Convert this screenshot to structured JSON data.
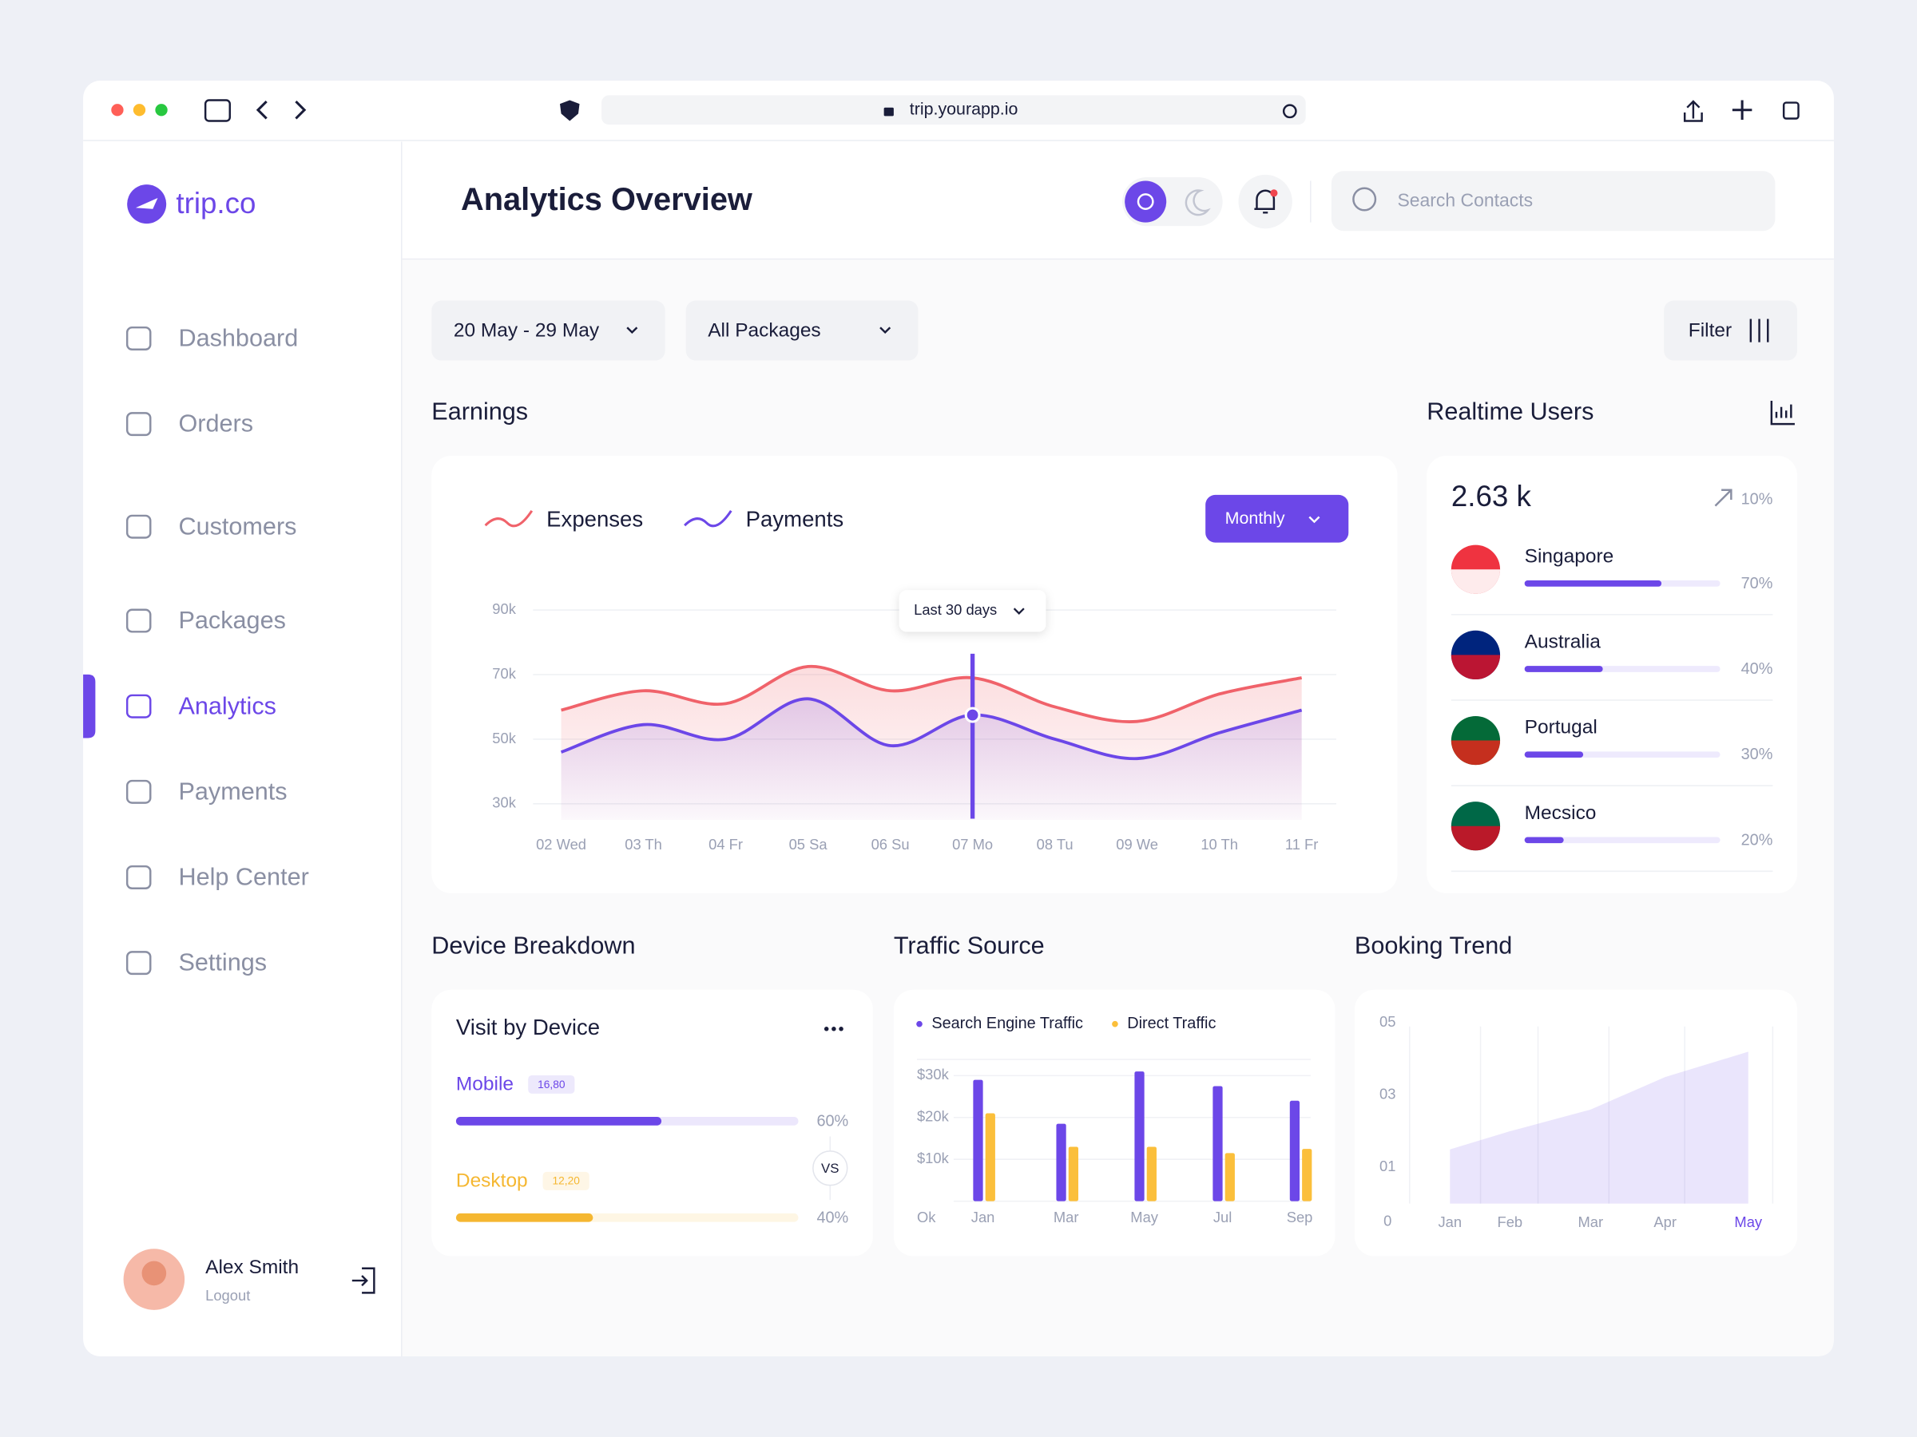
{
  "browser": {
    "url": "trip.yourapp.io"
  },
  "sidebar": {
    "logo": "trip.co",
    "nav": [
      {
        "label": "Dashboard"
      },
      {
        "label": "Orders"
      },
      {
        "label": "Customers"
      },
      {
        "label": "Packages"
      },
      {
        "label": "Analytics",
        "active": true
      },
      {
        "label": "Payments"
      },
      {
        "label": "Help Center"
      },
      {
        "label": "Settings"
      }
    ]
  },
  "user": {
    "name": "Alex Smith",
    "action": "Logout"
  },
  "header": {
    "title": "Analytics Overview",
    "search_placeholder": "Search Contacts"
  },
  "filters": {
    "date_range": "20 May - 29 May",
    "package": "All Packages",
    "filter": "Filter"
  },
  "sections": {
    "earnings": "Earnings",
    "realtime": "Realtime Users",
    "device": "Device Breakdown",
    "traffic": "Traffic Source",
    "booking": "Booking Trend"
  },
  "chart_data": [
    {
      "type": "line",
      "categories": [
        "02 Wed",
        "03 Th",
        "04 Fr",
        "05 Sa",
        "06 Su",
        "07 Mo",
        "08 Tu",
        "09 We",
        "10 Th",
        "11 Fr"
      ],
      "series": [
        {
          "name": "Expenses",
          "color": "#f0626a",
          "values": [
            59000,
            65000,
            61000,
            72500,
            65000,
            69000,
            60000,
            55500,
            64000,
            69000
          ]
        },
        {
          "name": "Payments",
          "color": "#6c47e8",
          "values": [
            46000,
            54500,
            50000,
            62500,
            48000,
            57500,
            50000,
            44000,
            52000,
            59000
          ]
        }
      ],
      "ylim": [
        25000,
        95000
      ],
      "yticks": [
        {
          "value": 30000,
          "label": "30k"
        },
        {
          "value": 50000,
          "label": "50k"
        },
        {
          "value": 70000,
          "label": "70k"
        },
        {
          "value": 90000,
          "label": "90k"
        }
      ],
      "grid": true,
      "period": "Monthly",
      "marker": {
        "label": "Last 30 days",
        "index": 5
      }
    },
    {
      "type": "bar",
      "categories": [
        "Jan",
        "Mar",
        "May",
        "Jul",
        "Sep"
      ],
      "series": [
        {
          "name": "Search Engine Traffic",
          "color": "#6c47e8",
          "values": [
            29000,
            18500,
            31000,
            27500,
            24000
          ]
        },
        {
          "name": "Direct Traffic",
          "color": "#fbbf3b",
          "values": [
            21000,
            13000,
            13000,
            11500,
            12500
          ]
        }
      ],
      "ylim": [
        0,
        33000
      ],
      "yticks": [
        {
          "value": 0,
          "label": "Ok"
        },
        {
          "value": 10000,
          "label": "$10k"
        },
        {
          "value": 20000,
          "label": "$20k"
        },
        {
          "value": 30000,
          "label": "$30k"
        }
      ],
      "grid": true
    },
    {
      "type": "area",
      "categories": [
        "Jan",
        "Feb",
        "Mar",
        "Apr",
        "May"
      ],
      "values": [
        1.5,
        2,
        2.6,
        3.5,
        4.2
      ],
      "color": "#6c47e8",
      "ylim": [
        0,
        5
      ],
      "yticks": [
        0,
        {
          "value": 1,
          "label": "01"
        },
        {
          "value": 3,
          "label": "03"
        },
        {
          "value": 5,
          "label": "05"
        }
      ]
    }
  ],
  "realtime_users": {
    "total": "2.63 k",
    "change": "10%",
    "countries": [
      "Singapore",
      "Australia",
      "Portugal",
      "Mecsico"
    ],
    "values": [
      70,
      40,
      30,
      20
    ],
    "value_labels": [
      "70%",
      "40%",
      "30%",
      "20%"
    ],
    "color": "#6c47e8"
  },
  "device": {
    "title": "Visit by Device",
    "devices": [
      "Mobile",
      "Desktop"
    ],
    "counts": [
      "16,80",
      "12,20"
    ],
    "values": [
      60,
      40
    ],
    "value_labels": [
      "60%",
      "40%"
    ],
    "versus": "VS",
    "colors": [
      "#6c47e8",
      "#f5b731"
    ]
  }
}
